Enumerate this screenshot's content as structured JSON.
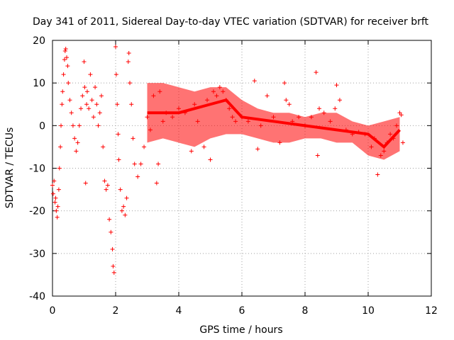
{
  "chart_data": {
    "type": "scatter",
    "title": "Day 341 of 2011, Sidereal Day-to-day VTEC variation (SDTVAR) for receiver brft",
    "xlabel": "GPS time / hours",
    "ylabel": "SDTVAR / TECUs",
    "xlim": [
      0,
      12
    ],
    "ylim": [
      -40,
      20
    ],
    "xticks": [
      0,
      2,
      4,
      6,
      8,
      10,
      12
    ],
    "yticks": [
      -40,
      -30,
      -20,
      -10,
      0,
      10,
      20
    ],
    "xtick_labels": [
      "0",
      "2",
      "4",
      "6",
      "8",
      "10",
      "12"
    ],
    "ytick_labels": [
      "-40",
      "-30",
      "-20",
      "-10",
      "0",
      "10",
      "20"
    ],
    "grid": true,
    "marker": "+",
    "series_color": "#ff0000",
    "series": [
      {
        "name": "brft",
        "points": [
          [
            0.0,
            -14
          ],
          [
            0.02,
            -16
          ],
          [
            0.05,
            -13
          ],
          [
            0.08,
            -18
          ],
          [
            0.1,
            -17
          ],
          [
            0.12,
            -20
          ],
          [
            0.15,
            -21.5
          ],
          [
            0.17,
            -19
          ],
          [
            0.2,
            -15
          ],
          [
            0.22,
            -10
          ],
          [
            0.25,
            -5
          ],
          [
            0.27,
            0
          ],
          [
            0.3,
            5
          ],
          [
            0.32,
            8
          ],
          [
            0.35,
            12
          ],
          [
            0.38,
            15.5
          ],
          [
            0.4,
            17.5
          ],
          [
            0.42,
            18
          ],
          [
            0.45,
            16
          ],
          [
            0.48,
            14
          ],
          [
            0.5,
            10
          ],
          [
            0.55,
            6
          ],
          [
            0.6,
            3
          ],
          [
            0.65,
            0
          ],
          [
            0.7,
            -3
          ],
          [
            0.75,
            -6
          ],
          [
            0.8,
            -4
          ],
          [
            0.85,
            0
          ],
          [
            0.9,
            4
          ],
          [
            0.95,
            7
          ],
          [
            1.0,
            15
          ],
          [
            1.02,
            9
          ],
          [
            1.05,
            -13.5
          ],
          [
            1.08,
            5
          ],
          [
            1.1,
            8
          ],
          [
            1.15,
            4
          ],
          [
            1.2,
            12
          ],
          [
            1.25,
            6
          ],
          [
            1.3,
            2
          ],
          [
            1.35,
            9
          ],
          [
            1.4,
            5
          ],
          [
            1.45,
            0
          ],
          [
            1.5,
            3
          ],
          [
            1.55,
            7
          ],
          [
            1.6,
            -5
          ],
          [
            1.65,
            -13
          ],
          [
            1.7,
            -15
          ],
          [
            1.75,
            -14
          ],
          [
            1.8,
            -22
          ],
          [
            1.85,
            -25
          ],
          [
            1.9,
            -29
          ],
          [
            1.92,
            -33
          ],
          [
            1.95,
            -34.5
          ],
          [
            2.0,
            18.5
          ],
          [
            2.02,
            12
          ],
          [
            2.05,
            5
          ],
          [
            2.08,
            -2
          ],
          [
            2.1,
            -8
          ],
          [
            2.15,
            -15
          ],
          [
            2.2,
            -20
          ],
          [
            2.25,
            -19
          ],
          [
            2.3,
            -21
          ],
          [
            2.35,
            -17
          ],
          [
            2.4,
            15
          ],
          [
            2.42,
            17
          ],
          [
            2.45,
            10
          ],
          [
            2.5,
            5
          ],
          [
            2.55,
            -3
          ],
          [
            2.6,
            -9
          ],
          [
            2.7,
            -12
          ],
          [
            2.8,
            -9
          ],
          [
            2.9,
            -5
          ],
          [
            3.0,
            2
          ],
          [
            3.1,
            -1
          ],
          [
            3.2,
            7
          ],
          [
            3.3,
            -13.5
          ],
          [
            3.35,
            -9
          ],
          [
            3.4,
            8
          ],
          [
            3.5,
            1
          ],
          [
            3.6,
            3
          ],
          [
            3.8,
            2
          ],
          [
            4.0,
            4
          ],
          [
            4.2,
            3
          ],
          [
            4.4,
            -6
          ],
          [
            4.5,
            5
          ],
          [
            4.6,
            1
          ],
          [
            4.8,
            -5
          ],
          [
            4.9,
            6
          ],
          [
            5.0,
            -8
          ],
          [
            5.1,
            8
          ],
          [
            5.2,
            7
          ],
          [
            5.3,
            9
          ],
          [
            5.4,
            8
          ],
          [
            5.5,
            6
          ],
          [
            5.6,
            4
          ],
          [
            5.7,
            2
          ],
          [
            5.8,
            1
          ],
          [
            6.0,
            2
          ],
          [
            6.2,
            1
          ],
          [
            6.4,
            10.5
          ],
          [
            6.5,
            -5.5
          ],
          [
            6.6,
            0
          ],
          [
            6.8,
            7
          ],
          [
            7.0,
            2
          ],
          [
            7.2,
            -4
          ],
          [
            7.35,
            10
          ],
          [
            7.4,
            6
          ],
          [
            7.5,
            5
          ],
          [
            7.6,
            1
          ],
          [
            7.8,
            2
          ],
          [
            8.0,
            0
          ],
          [
            8.2,
            2
          ],
          [
            8.35,
            12.5
          ],
          [
            8.4,
            -7
          ],
          [
            8.45,
            4
          ],
          [
            8.6,
            3
          ],
          [
            8.8,
            1
          ],
          [
            8.95,
            4
          ],
          [
            9.0,
            9.5
          ],
          [
            9.1,
            6
          ],
          [
            9.3,
            -1
          ],
          [
            9.5,
            -2
          ],
          [
            9.7,
            -1.5
          ],
          [
            9.9,
            -2
          ],
          [
            10.1,
            -5
          ],
          [
            10.2,
            -3
          ],
          [
            10.3,
            -11.5
          ],
          [
            10.4,
            -7
          ],
          [
            10.5,
            -6
          ],
          [
            10.6,
            -4
          ],
          [
            10.7,
            -2
          ],
          [
            10.8,
            -3
          ],
          [
            10.9,
            0
          ],
          [
            11.0,
            3
          ],
          [
            11.05,
            2.5
          ],
          [
            11.1,
            -4
          ]
        ],
        "trend": [
          [
            3.0,
            3
          ],
          [
            4.0,
            3
          ],
          [
            5.0,
            5
          ],
          [
            5.5,
            6
          ],
          [
            6.0,
            2
          ],
          [
            7.0,
            1
          ],
          [
            8.0,
            0
          ],
          [
            9.0,
            -1
          ],
          [
            10.0,
            -2
          ],
          [
            10.5,
            -5
          ],
          [
            11.0,
            -1
          ]
        ],
        "band": [
          [
            3.0,
            -4,
            10
          ],
          [
            3.5,
            -3,
            10
          ],
          [
            4.0,
            -4,
            9
          ],
          [
            4.5,
            -5,
            8
          ],
          [
            5.0,
            -3,
            9
          ],
          [
            5.5,
            -2,
            9
          ],
          [
            6.0,
            -2,
            6
          ],
          [
            6.5,
            -3,
            4
          ],
          [
            7.0,
            -4,
            3
          ],
          [
            7.5,
            -4,
            3
          ],
          [
            8.0,
            -3,
            2
          ],
          [
            8.5,
            -3,
            3
          ],
          [
            9.0,
            -4,
            3
          ],
          [
            9.5,
            -4,
            1
          ],
          [
            10.0,
            -7,
            0
          ],
          [
            10.5,
            -8,
            1
          ],
          [
            11.0,
            -6,
            2
          ]
        ]
      }
    ]
  }
}
